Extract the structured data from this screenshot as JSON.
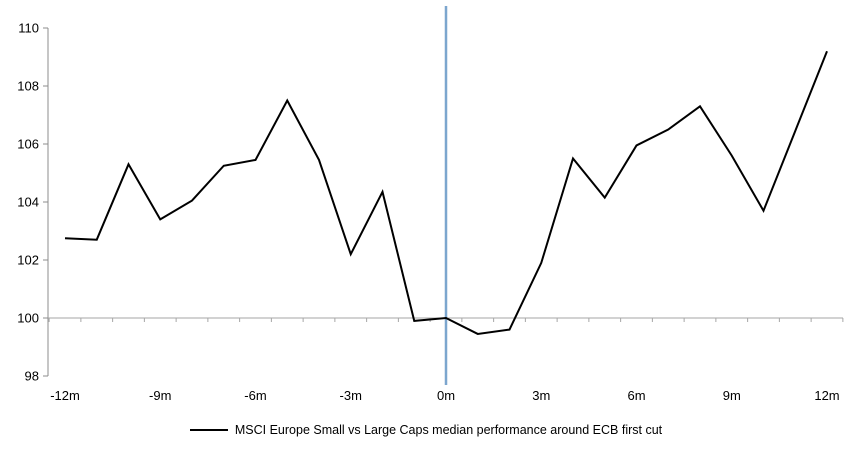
{
  "chart_data": {
    "type": "line",
    "title": "",
    "legend": "MSCI Europe Small vs Large Caps median performance around ECB first cut",
    "xlabel": "",
    "ylabel": "",
    "x": [
      -12,
      -11,
      -10,
      -9,
      -8,
      -7,
      -6,
      -5,
      -4,
      -3,
      -2,
      -1,
      0,
      1,
      2,
      3,
      4,
      5,
      6,
      7,
      8,
      9,
      10,
      11,
      12
    ],
    "x_tick_labels": [
      "-12m",
      "-9m",
      "-6m",
      "-3m",
      "0m",
      "3m",
      "6m",
      "9m",
      "12m"
    ],
    "x_tick_every": 3,
    "series": [
      {
        "name": "MSCI Europe Small vs Large Caps median performance around ECB first cut",
        "color": "#000000",
        "values": [
          102.75,
          102.7,
          105.3,
          103.4,
          104.05,
          105.25,
          105.45,
          107.5,
          105.45,
          102.2,
          104.35,
          99.9,
          100.0,
          99.45,
          99.6,
          101.9,
          105.5,
          104.15,
          105.95,
          106.5,
          107.3,
          105.6,
          103.7,
          106.45,
          109.2
        ]
      }
    ],
    "ylim": [
      98,
      110
    ],
    "y_ticks": [
      98,
      100,
      102,
      104,
      106,
      108,
      110
    ],
    "axis_crosses_at": 100,
    "event_line": {
      "x": 0,
      "color": "#7CA6CE"
    },
    "grid": "off",
    "legend_position": "bottom"
  },
  "colors": {
    "series": "#000000",
    "event_line": "#7CA6CE",
    "axis_y": "#8C8C8C",
    "axis_x": "#A6A6A6",
    "text": "#000000",
    "background": "#FFFFFF"
  }
}
